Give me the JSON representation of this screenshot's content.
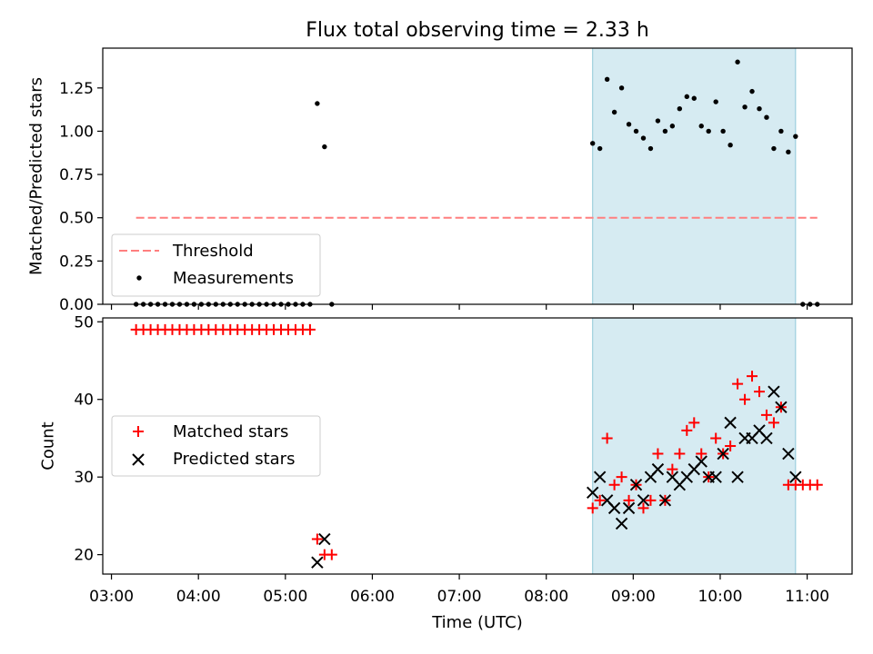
{
  "title": "Flux total observing time = 2.33 h",
  "xlabel": "Time (UTC)",
  "xticks": [
    "03:00",
    "04:00",
    "05:00",
    "06:00",
    "07:00",
    "08:00",
    "09:00",
    "10:00",
    "11:00"
  ],
  "colors": {
    "threshold": "#ff7f7f",
    "span": "#add8e6",
    "matched": "#ff0000",
    "predicted": "#000000",
    "measure": "#000000"
  },
  "chart_data": [
    {
      "type": "scatter",
      "ylabel": "Matched/Predicted stars",
      "ylim": [
        0,
        1.48
      ],
      "yticks": [
        "0.00",
        "0.25",
        "0.50",
        "0.75",
        "1.00",
        "1.25"
      ],
      "x_range": [
        "02:54",
        "11:31"
      ],
      "observing_span": [
        "08:32",
        "10:52"
      ],
      "threshold": {
        "value": 0.5,
        "x_start": "03:17",
        "x_end": "11:07"
      },
      "legend": {
        "placement": "lower left",
        "entries": [
          "Threshold",
          "Measurements"
        ]
      },
      "series": [
        {
          "name": "Measurements",
          "x": [
            "03:17",
            "03:22",
            "03:27",
            "03:32",
            "03:37",
            "03:42",
            "03:47",
            "03:52",
            "03:57",
            "04:02",
            "04:07",
            "04:12",
            "04:17",
            "04:22",
            "04:27",
            "04:32",
            "04:37",
            "04:42",
            "04:47",
            "04:52",
            "04:57",
            "05:02",
            "05:07",
            "05:12",
            "05:17",
            "05:22",
            "05:27",
            "05:32",
            "08:32",
            "08:37",
            "08:42",
            "08:47",
            "08:52",
            "08:57",
            "09:02",
            "09:07",
            "09:12",
            "09:17",
            "09:22",
            "09:27",
            "09:32",
            "09:37",
            "09:42",
            "09:47",
            "09:52",
            "09:57",
            "10:02",
            "10:07",
            "10:12",
            "10:17",
            "10:22",
            "10:27",
            "10:32",
            "10:37",
            "10:42",
            "10:47",
            "10:52",
            "10:57",
            "11:02",
            "11:07"
          ],
          "y": [
            0,
            0,
            0,
            0,
            0,
            0,
            0,
            0,
            0,
            0,
            0,
            0,
            0,
            0,
            0,
            0,
            0,
            0,
            0,
            0,
            0,
            0,
            0,
            0,
            0,
            1.16,
            0.91,
            0,
            0.93,
            0.9,
            1.3,
            1.11,
            1.25,
            1.04,
            1.0,
            0.96,
            0.9,
            1.06,
            1.0,
            1.03,
            1.13,
            1.2,
            1.19,
            1.03,
            1.0,
            1.17,
            1.0,
            0.92,
            1.4,
            1.14,
            1.23,
            1.13,
            1.08,
            0.9,
            1.0,
            0.88,
            0.97,
            0,
            0,
            0
          ]
        }
      ]
    },
    {
      "type": "scatter",
      "ylabel": "Count",
      "ylim": [
        17.5,
        50.5
      ],
      "yticks": [
        "20",
        "30",
        "40",
        "50"
      ],
      "x_range": [
        "02:54",
        "11:31"
      ],
      "observing_span": [
        "08:32",
        "10:52"
      ],
      "legend": {
        "placement": "center left",
        "entries": [
          "Matched stars",
          "Predicted stars"
        ]
      },
      "series": [
        {
          "name": "Matched stars",
          "marker": "+",
          "x": [
            "03:17",
            "03:22",
            "03:27",
            "03:32",
            "03:37",
            "03:42",
            "03:47",
            "03:52",
            "03:57",
            "04:02",
            "04:07",
            "04:12",
            "04:17",
            "04:22",
            "04:27",
            "04:32",
            "04:37",
            "04:42",
            "04:47",
            "04:52",
            "04:57",
            "05:02",
            "05:07",
            "05:12",
            "05:17",
            "05:22",
            "05:27",
            "05:32",
            "08:32",
            "08:37",
            "08:42",
            "08:47",
            "08:52",
            "08:57",
            "09:02",
            "09:07",
            "09:12",
            "09:17",
            "09:22",
            "09:27",
            "09:32",
            "09:37",
            "09:42",
            "09:47",
            "09:52",
            "09:57",
            "10:02",
            "10:07",
            "10:12",
            "10:17",
            "10:22",
            "10:27",
            "10:32",
            "10:37",
            "10:42",
            "10:47",
            "10:52",
            "10:57",
            "11:02",
            "11:07"
          ],
          "y": [
            49,
            49,
            49,
            49,
            49,
            49,
            49,
            49,
            49,
            49,
            49,
            49,
            49,
            49,
            49,
            49,
            49,
            49,
            49,
            49,
            49,
            49,
            49,
            49,
            49,
            22,
            20,
            20,
            26,
            27,
            35,
            29,
            30,
            27,
            29,
            26,
            27,
            33,
            27,
            31,
            33,
            36,
            37,
            33,
            30,
            35,
            33,
            34,
            42,
            40,
            43,
            41,
            38,
            37,
            39,
            29,
            29,
            29,
            29,
            29
          ]
        },
        {
          "name": "Predicted stars",
          "marker": "x",
          "x": [
            "05:22",
            "05:27",
            "08:32",
            "08:37",
            "08:42",
            "08:47",
            "08:52",
            "08:57",
            "09:02",
            "09:07",
            "09:12",
            "09:17",
            "09:22",
            "09:27",
            "09:32",
            "09:37",
            "09:42",
            "09:47",
            "09:52",
            "09:57",
            "10:02",
            "10:07",
            "10:12",
            "10:17",
            "10:22",
            "10:27",
            "10:32",
            "10:37",
            "10:42",
            "10:47",
            "10:52"
          ],
          "y": [
            19,
            22,
            28,
            30,
            27,
            26,
            24,
            26,
            29,
            27,
            30,
            31,
            27,
            30,
            29,
            30,
            31,
            32,
            30,
            30,
            33,
            37,
            30,
            35,
            35,
            36,
            35,
            41,
            39,
            33,
            30
          ]
        }
      ]
    }
  ]
}
